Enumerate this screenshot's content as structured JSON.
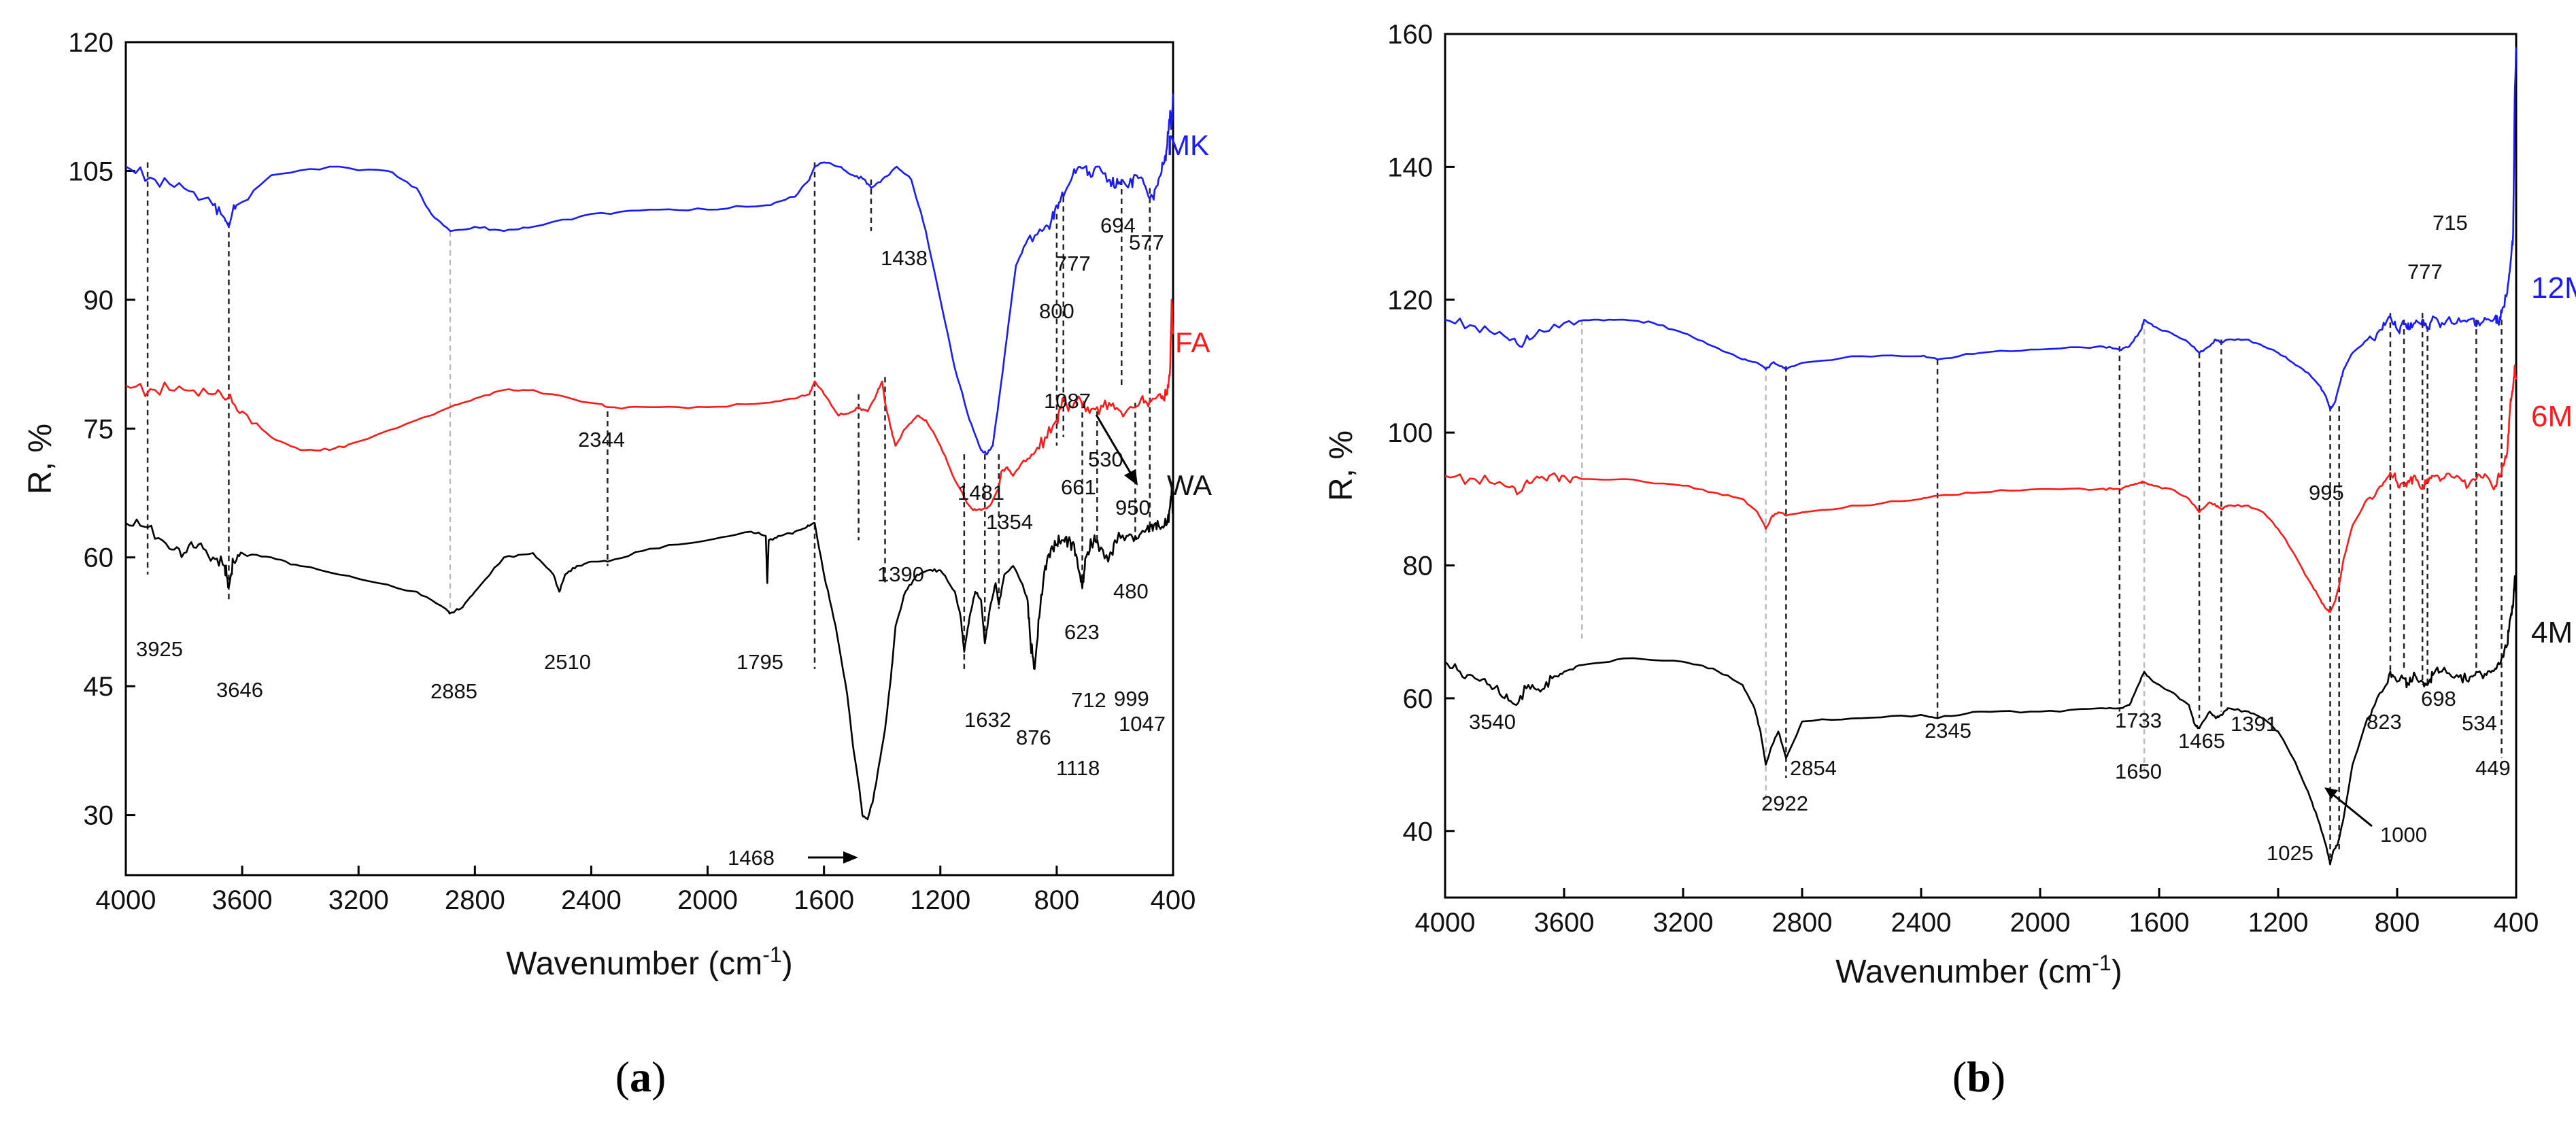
{
  "chart_data": [
    {
      "type": "line",
      "panel_label": "a",
      "xlabel": "Wavenumber (cm",
      "xlabel_sup": "-1",
      "xlabel_close": ")",
      "ylabel": "R, %",
      "xlim": [
        4000,
        400
      ],
      "ylim": [
        23,
        120
      ],
      "xticks": [
        4000,
        3600,
        3200,
        2800,
        2400,
        2000,
        1600,
        1200,
        800,
        400
      ],
      "yticks": [
        30,
        45,
        60,
        75,
        90,
        105,
        120
      ],
      "series": [
        {
          "name": "MK",
          "color": "#1a1aff",
          "x": [
            4000,
            3900,
            3800,
            3700,
            3660,
            3646,
            3620,
            3500,
            3300,
            3100,
            3000,
            2950,
            2885,
            2800,
            2700,
            2600,
            2400,
            2200,
            2000,
            1800,
            1700,
            1650,
            1632,
            1600,
            1550,
            1500,
            1460,
            1438,
            1400,
            1350,
            1300,
            1250,
            1200,
            1150,
            1100,
            1060,
            1040,
            1020,
            1000,
            970,
            940,
            900,
            850,
            820,
            800,
            777,
            750,
            720,
            694,
            660,
            620,
            600,
            577,
            550,
            530,
            500,
            470,
            450,
            430,
            420,
            410,
            405,
            400
          ],
          "y": [
            105.5,
            104,
            103,
            101,
            99.5,
            98.5,
            101,
            104.5,
            105.5,
            105,
            103,
            100,
            98,
            98.5,
            98,
            98.5,
            100,
            100.5,
            100.5,
            101,
            102,
            104,
            105.5,
            106,
            105.5,
            104.5,
            104,
            103,
            104,
            105.5,
            104,
            98,
            90,
            82,
            76,
            72.5,
            72,
            73,
            78,
            86,
            94,
            97,
            98,
            99,
            101,
            102,
            104,
            105.5,
            104.5,
            105.5,
            104,
            103,
            104,
            103.5,
            104.5,
            103.5,
            102,
            104,
            106,
            108,
            112,
            110,
            114
          ]
        },
        {
          "name": "FA",
          "color": "#ff1a1a",
          "x": [
            4000,
            3900,
            3800,
            3700,
            3650,
            3600,
            3500,
            3400,
            3300,
            3200,
            3000,
            2885,
            2800,
            2700,
            2600,
            2400,
            2344,
            2200,
            2000,
            1800,
            1700,
            1650,
            1632,
            1600,
            1550,
            1500,
            1481,
            1450,
            1420,
            1400,
            1390,
            1370,
            1354,
            1320,
            1280,
            1250,
            1200,
            1150,
            1100,
            1087,
            1060,
            1030,
            1000,
            990,
            970,
            950,
            920,
            880,
            840,
            800,
            780,
            750,
            720,
            700,
            661,
            620,
            580,
            530,
            500,
            470,
            440,
            420,
            410,
            405,
            400
          ],
          "y": [
            80,
            79.5,
            79.5,
            79,
            78.5,
            77,
            74,
            72.5,
            72.5,
            73.5,
            76,
            77.5,
            78.5,
            79.5,
            79.5,
            78,
            77.5,
            77.5,
            77.5,
            78,
            78.5,
            79,
            80.5,
            79,
            76.5,
            77,
            77.5,
            77,
            79,
            80.5,
            78,
            75,
            73,
            75,
            76.5,
            76,
            73,
            69,
            66,
            65.5,
            65.5,
            66,
            68,
            70,
            70.5,
            69.5,
            71,
            72,
            74,
            76,
            78.5,
            77.5,
            78.5,
            77,
            77.5,
            78,
            77,
            77.5,
            78,
            78.5,
            78.5,
            79,
            82,
            90,
            86
          ]
        },
        {
          "name": "WA",
          "color": "#000000",
          "x": [
            4000,
            3925,
            3850,
            3800,
            3750,
            3700,
            3660,
            3646,
            3630,
            3600,
            3500,
            3400,
            3200,
            3000,
            2900,
            2885,
            2850,
            2800,
            2700,
            2600,
            2530,
            2510,
            2490,
            2450,
            2400,
            2344,
            2200,
            2000,
            1850,
            1800,
            1795,
            1790,
            1750,
            1700,
            1660,
            1632,
            1600,
            1560,
            1520,
            1500,
            1480,
            1468,
            1450,
            1430,
            1410,
            1390,
            1370,
            1354,
            1320,
            1280,
            1240,
            1200,
            1150,
            1130,
            1118,
            1100,
            1080,
            1060,
            1047,
            1030,
            1010,
            999,
            980,
            950,
            920,
            900,
            890,
            876,
            860,
            840,
            820,
            800,
            780,
            760,
            740,
            720,
            712,
            700,
            680,
            660,
            623,
            600,
            560,
            530,
            500,
            480,
            460,
            440,
            420,
            410,
            405,
            400
          ],
          "y": [
            64,
            63.5,
            61,
            60.5,
            61.5,
            60,
            59,
            56.5,
            59.5,
            60.5,
            60,
            59,
            57.5,
            56,
            54,
            53.5,
            54,
            56,
            60,
            60.5,
            58,
            56,
            58,
            59,
            59.5,
            59.5,
            61,
            62,
            63,
            62.5,
            57,
            62,
            62.5,
            63,
            63.5,
            64,
            58,
            52,
            44,
            38,
            33.5,
            30,
            29.5,
            32,
            36,
            40,
            46,
            52,
            56,
            58,
            58.5,
            58.5,
            56,
            53,
            49,
            53,
            56,
            55,
            50,
            54,
            57,
            54.5,
            58,
            59,
            57,
            55,
            50,
            47,
            53,
            59,
            61,
            61.5,
            62,
            62,
            61.5,
            58,
            56.5,
            60,
            61.5,
            62,
            59.5,
            62,
            62.5,
            62.5,
            63,
            63.5,
            64,
            63.5,
            64,
            66,
            68,
            65
          ]
        }
      ],
      "annotations": [
        "3925",
        "3646",
        "2885",
        "2510",
        "2344",
        "1795",
        "1632",
        "1481",
        "1468",
        "1438",
        "1390",
        "1354",
        "1118",
        "1087",
        "1047",
        "999",
        "950",
        "876",
        "800",
        "777",
        "712",
        "694",
        "661",
        "623",
        "577",
        "530",
        "480"
      ]
    },
    {
      "type": "line",
      "panel_label": "b",
      "xlabel": "Wavenumber (cm",
      "xlabel_sup": "-1",
      "xlabel_close": ")",
      "ylabel": "R, %",
      "xlim": [
        4000,
        400
      ],
      "ylim": [
        30,
        160
      ],
      "xticks": [
        4000,
        3600,
        3200,
        2800,
        2400,
        2000,
        1600,
        1200,
        800,
        400
      ],
      "yticks": [
        40,
        60,
        80,
        100,
        120,
        140,
        160
      ],
      "series": [
        {
          "name": "12M",
          "color": "#1a1aff",
          "x": [
            4000,
            3900,
            3800,
            3750,
            3700,
            3600,
            3500,
            3400,
            3300,
            3200,
            3100,
            3000,
            2950,
            2922,
            2900,
            2870,
            2854,
            2800,
            2600,
            2400,
            2345,
            2200,
            2000,
            1800,
            1733,
            1700,
            1660,
            1650,
            1620,
            1560,
            1500,
            1465,
            1430,
            1410,
            1391,
            1370,
            1300,
            1250,
            1200,
            1150,
            1100,
            1060,
            1040,
            1025,
            1010,
            995,
            980,
            950,
            900,
            850,
            823,
            800,
            777,
            760,
            740,
            715,
            698,
            680,
            650,
            600,
            560,
            534,
            500,
            470,
            460,
            449,
            430,
            420,
            410,
            405,
            400
          ],
          "y": [
            117,
            116,
            114.5,
            113,
            114.5,
            116.5,
            117,
            117,
            116.5,
            115,
            113,
            111,
            110.5,
            109.5,
            110.5,
            110,
            109.5,
            110.5,
            111.5,
            111.5,
            111,
            112,
            112.5,
            113,
            112.5,
            113,
            115.5,
            117,
            116,
            115,
            113.5,
            112,
            113,
            114,
            113.5,
            114,
            114,
            113,
            112,
            110.5,
            109,
            107,
            105.5,
            103.5,
            104.5,
            107,
            109.5,
            112,
            114,
            115.5,
            117.5,
            115.5,
            116.5,
            115.5,
            116.5,
            117,
            115.5,
            117.5,
            116.5,
            116.5,
            117,
            116,
            117,
            117.5,
            116.5,
            118,
            121,
            125,
            130,
            150,
            158
          ]
        },
        {
          "name": "6M",
          "color": "#ff1a1a",
          "x": [
            4000,
            3900,
            3800,
            3750,
            3700,
            3650,
            3600,
            3540,
            3400,
            3200,
            3100,
            3000,
            2950,
            2922,
            2900,
            2880,
            2854,
            2800,
            2600,
            2400,
            2345,
            2200,
            2000,
            1800,
            1733,
            1700,
            1660,
            1650,
            1620,
            1560,
            1500,
            1465,
            1430,
            1410,
            1391,
            1370,
            1300,
            1250,
            1200,
            1150,
            1100,
            1060,
            1040,
            1025,
            1010,
            995,
            980,
            950,
            900,
            850,
            823,
            800,
            777,
            760,
            740,
            715,
            698,
            680,
            650,
            600,
            560,
            534,
            500,
            470,
            449,
            430,
            420,
            410,
            405,
            400
          ],
          "y": [
            93.5,
            93,
            92,
            91,
            93,
            93.5,
            93.5,
            93,
            93,
            92,
            91,
            90,
            88,
            85.5,
            87.5,
            88,
            87.5,
            88,
            89,
            90,
            90.5,
            91,
            91.5,
            91.5,
            91.5,
            92,
            92.5,
            92.5,
            92,
            91.5,
            90,
            88,
            89.5,
            89,
            88.5,
            89,
            89,
            88,
            85.5,
            82,
            78,
            75,
            73.5,
            73,
            74.5,
            77,
            81,
            86,
            90,
            92,
            94,
            92.5,
            92,
            92.5,
            93.5,
            91.5,
            93,
            93.5,
            93,
            93.5,
            92,
            93,
            93.5,
            92,
            94,
            97,
            104,
            107,
            110,
            108
          ]
        },
        {
          "name": "4M",
          "color": "#000000",
          "x": [
            4000,
            3950,
            3900,
            3850,
            3800,
            3760,
            3720,
            3680,
            3640,
            3600,
            3540,
            3400,
            3200,
            3100,
            3000,
            2960,
            2940,
            2922,
            2900,
            2880,
            2854,
            2800,
            2600,
            2400,
            2345,
            2200,
            2000,
            1800,
            1733,
            1700,
            1670,
            1650,
            1620,
            1560,
            1500,
            1480,
            1465,
            1430,
            1410,
            1391,
            1370,
            1300,
            1250,
            1200,
            1150,
            1100,
            1060,
            1040,
            1030,
            1025,
            1015,
            1000,
            980,
            950,
            900,
            850,
            823,
            800,
            777,
            760,
            740,
            715,
            698,
            680,
            650,
            600,
            560,
            534,
            500,
            470,
            449,
            430,
            420,
            410,
            405,
            400
          ],
          "y": [
            65.5,
            64,
            63,
            62,
            60,
            59,
            62,
            61,
            63,
            64,
            65,
            66,
            65.5,
            64.5,
            62,
            58.5,
            55,
            50,
            53,
            55,
            51,
            56.5,
            57,
            57.5,
            57,
            58,
            58,
            58.5,
            58.5,
            59,
            62,
            64,
            62.5,
            61,
            59,
            56,
            55.5,
            58,
            57,
            57.5,
            58.5,
            58,
            57,
            55,
            51,
            46,
            41,
            38,
            36,
            35,
            37,
            38,
            42,
            50,
            57,
            61,
            64,
            62.5,
            63,
            62,
            63.5,
            62.5,
            62,
            63.5,
            64,
            63.5,
            62.5,
            64,
            63.5,
            64.5,
            66,
            68,
            72,
            74,
            78,
            76
          ]
        }
      ],
      "annotations": [
        "3540",
        "2922",
        "2854",
        "2345",
        "1733",
        "1650",
        "1465",
        "1391",
        "1025",
        "1000",
        "995",
        "823",
        "777",
        "715",
        "698",
        "534",
        "449"
      ]
    }
  ]
}
